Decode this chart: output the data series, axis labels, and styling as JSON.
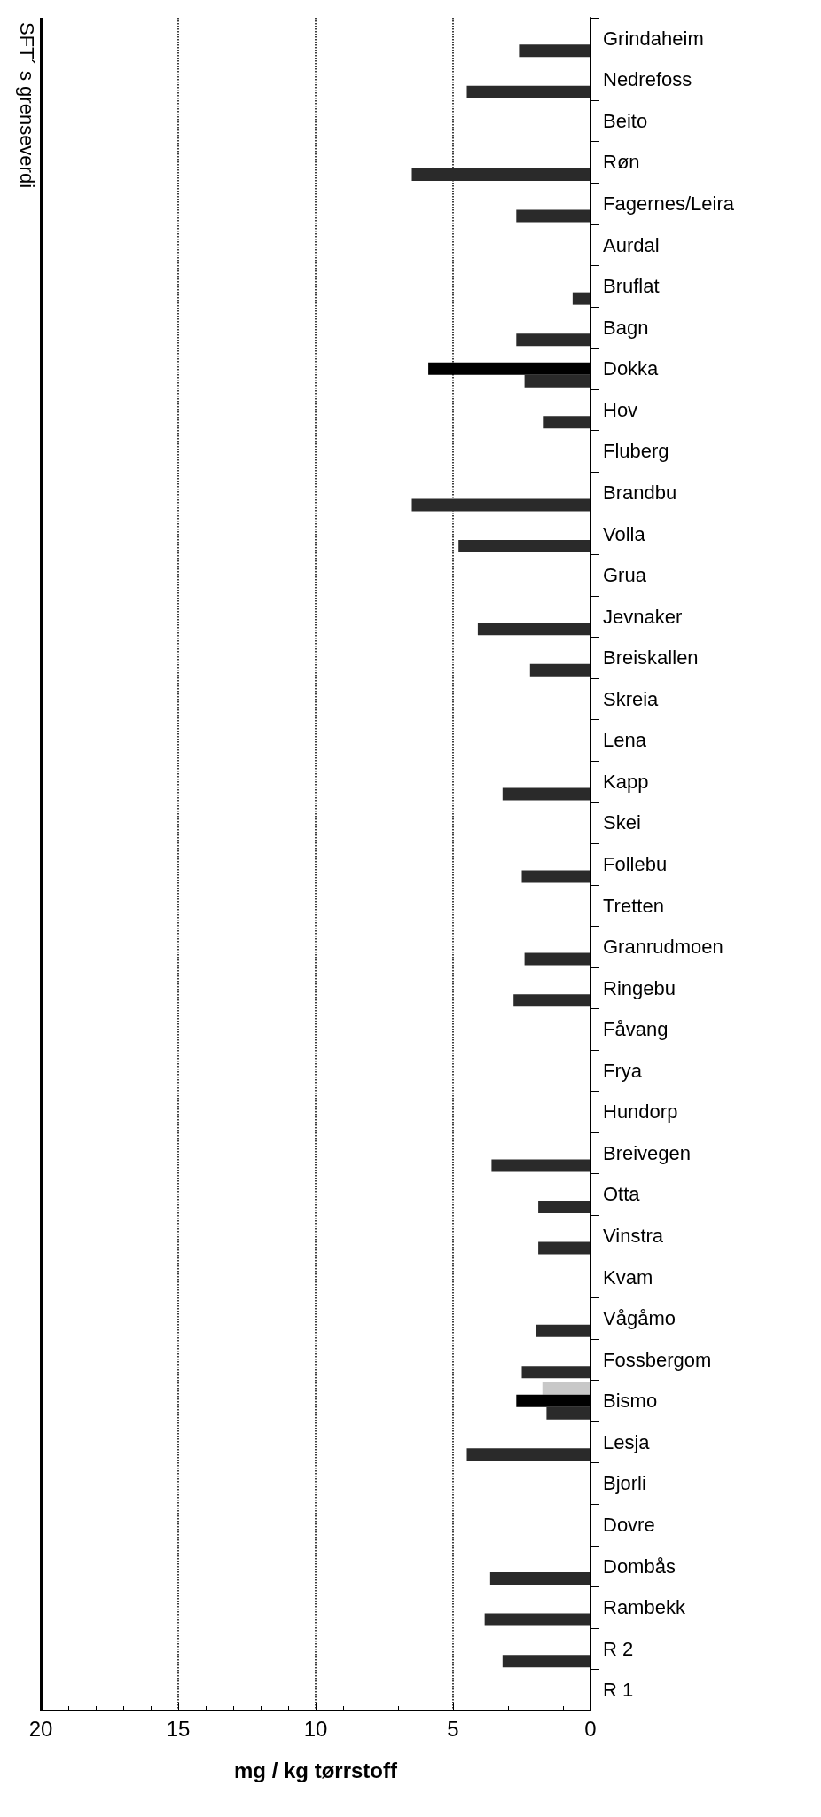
{
  "chart_data": {
    "type": "bar",
    "orientation": "horizontal",
    "xlabel": "mg / kg tørrstoff",
    "categories": [
      "Grindaheim",
      "Nedrefoss",
      "Beito",
      "Røn",
      "Fagernes/Leira",
      "Aurdal",
      "Bruflat",
      "Bagn",
      "Dokka",
      "Hov",
      "Fluberg",
      "Brandbu",
      "Volla",
      "Grua",
      "Jevnaker",
      "Breiskallen",
      "Skreia",
      "Lena",
      "Kapp",
      "Skei",
      "Follebu",
      "Tretten",
      "Granrudmoen",
      "Ringebu",
      "Fåvang",
      "Frya",
      "Hundorp",
      "Breivegen",
      "Otta",
      "Vinstra",
      "Kvam",
      "Vågåmo",
      "Fossbergom",
      "Bismo",
      "Lesja",
      "Bjorli",
      "Dovre",
      "Dombås",
      "Rambekk",
      "R 2",
      "R 1"
    ],
    "series": [
      {
        "color": "#c8c8c8",
        "values": [
          null,
          null,
          null,
          null,
          null,
          null,
          null,
          null,
          null,
          null,
          null,
          null,
          null,
          null,
          null,
          null,
          null,
          null,
          null,
          null,
          null,
          null,
          null,
          null,
          null,
          null,
          null,
          null,
          null,
          null,
          null,
          null,
          null,
          1.75,
          null,
          null,
          null,
          null,
          null,
          null,
          null
        ]
      },
      {
        "color": "#000000",
        "values": [
          null,
          null,
          null,
          null,
          null,
          null,
          null,
          null,
          5.9,
          null,
          null,
          null,
          null,
          null,
          null,
          null,
          null,
          null,
          null,
          null,
          null,
          null,
          null,
          null,
          null,
          null,
          null,
          null,
          null,
          null,
          null,
          null,
          null,
          2.7,
          null,
          null,
          null,
          null,
          null,
          null,
          null
        ]
      },
      {
        "color": "#2a2a2a",
        "values": [
          2.6,
          4.5,
          null,
          6.5,
          2.7,
          null,
          0.65,
          2.7,
          2.4,
          1.7,
          null,
          6.5,
          4.8,
          null,
          4.1,
          2.2,
          null,
          null,
          3.2,
          null,
          2.5,
          null,
          2.4,
          2.8,
          null,
          null,
          null,
          3.6,
          1.9,
          1.9,
          null,
          2.0,
          2.5,
          1.6,
          4.5,
          null,
          null,
          3.65,
          3.85,
          3.2,
          null
        ]
      }
    ],
    "xlim": [
      20,
      0
    ],
    "xticks": [
      20,
      15,
      10,
      5,
      0
    ],
    "grid": "x",
    "ref_lines": [
      {
        "axis": "x",
        "value": 20,
        "label": "SFT´ s grenseverdi",
        "color": "#000000"
      }
    ]
  }
}
